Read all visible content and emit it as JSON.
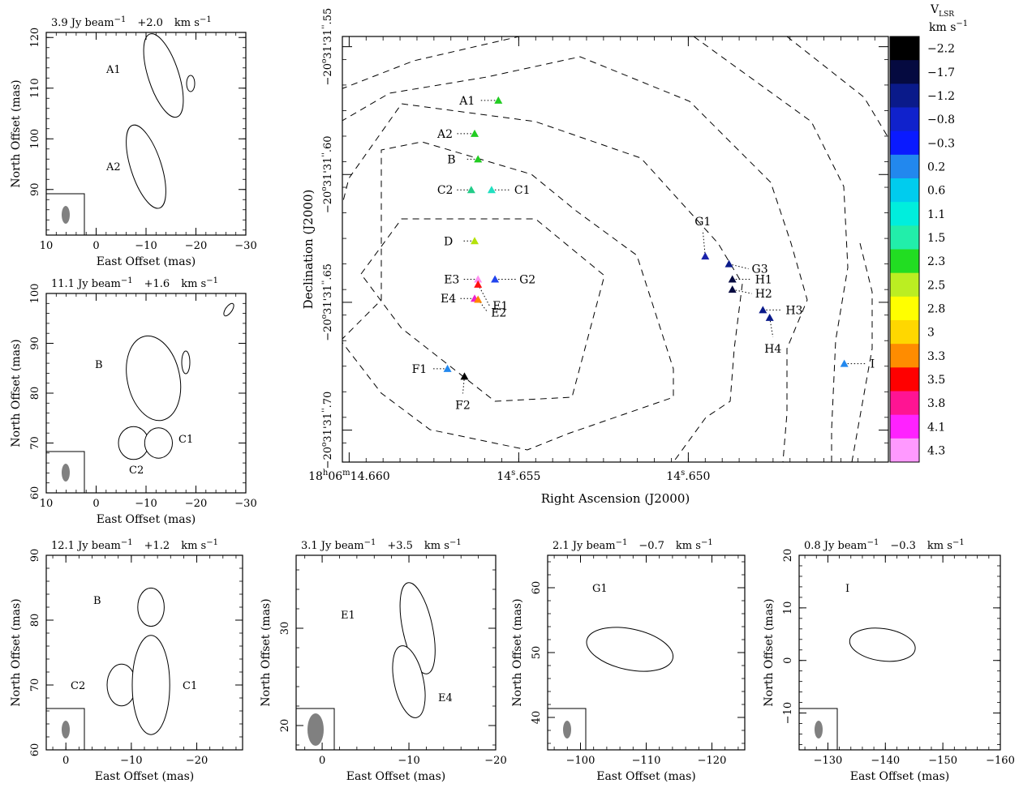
{
  "panels": [
    {
      "id": "p1",
      "title": {
        "flux": "3.9 Jy beam",
        "exp": "−1",
        "vel": "+2.0",
        "unit": "km s",
        "uexp": "−1"
      },
      "xlabel": "East Offset (mas)",
      "ylabel": "North Offset (mas)",
      "xlim": [
        10,
        -30
      ],
      "ylim": [
        81,
        121
      ],
      "xticks": [
        "10",
        "0",
        "−10",
        "−20",
        "−30"
      ],
      "yticks": [
        "90",
        "100",
        "110",
        "120"
      ],
      "labels": [
        "A1",
        "A2"
      ],
      "components": [
        {
          "name": "A1",
          "x": -13.5,
          "y": 112.5,
          "peak": 1.0
        },
        {
          "name": "A2",
          "x": -10,
          "y": 94.5,
          "peak": 0.95
        }
      ]
    },
    {
      "id": "p2",
      "title": {
        "flux": "11.1 Jy beam",
        "exp": "−1",
        "vel": "+1.6",
        "unit": "km s",
        "uexp": "−1"
      },
      "xlabel": "East Offset (mas)",
      "ylabel": "North Offset (mas)",
      "xlim": [
        10,
        -30
      ],
      "ylim": [
        60,
        100
      ],
      "xticks": [
        "10",
        "0",
        "−10",
        "−20",
        "−30"
      ],
      "yticks": [
        "60",
        "70",
        "80",
        "90",
        "100"
      ],
      "labels": [
        "B",
        "C1",
        "C2"
      ],
      "components": [
        {
          "name": "B",
          "x": -11.5,
          "y": 83,
          "peak": 1.0
        },
        {
          "name": "C2",
          "x": -7.5,
          "y": 70,
          "peak": 0.8
        },
        {
          "name": "C1",
          "x": -12.5,
          "y": 70,
          "peak": 0.35
        }
      ]
    },
    {
      "id": "p3",
      "title": {
        "flux": "12.1 Jy beam",
        "exp": "−1",
        "vel": "+1.2",
        "unit": "km s",
        "uexp": "−1"
      },
      "xlabel": "East Offset (mas)",
      "ylabel": "North Offset (mas)",
      "xlim": [
        3,
        -27
      ],
      "ylim": [
        60,
        90
      ],
      "xticks": [
        "0",
        "−10",
        "−20"
      ],
      "yticks": [
        "60",
        "70",
        "80",
        "90"
      ],
      "labels": [
        "B",
        "C2",
        "C1"
      ],
      "components": [
        {
          "name": "B",
          "x": -13,
          "y": 82,
          "peak": 0.3
        },
        {
          "name": "C2",
          "x": -8.5,
          "y": 70,
          "peak": 0.55
        },
        {
          "name": "C1",
          "x": -13,
          "y": 70,
          "peak": 1.0
        }
      ]
    },
    {
      "id": "p4",
      "title": {
        "flux": "3.1 Jy beam",
        "exp": "−1",
        "vel": "+3.5",
        "unit": "km s",
        "uexp": "−1"
      },
      "xlabel": "East Offset (mas)",
      "ylabel": "North Offset (mas)",
      "xlim": [
        3,
        -20
      ],
      "ylim": [
        17.5,
        37.5
      ],
      "xticks": [
        "0",
        "−10",
        "−20"
      ],
      "yticks": [
        "20",
        "30"
      ],
      "labels": [
        "E1",
        "E4"
      ],
      "components": [
        {
          "name": "E1",
          "x": -11,
          "y": 30,
          "peak": 1.0
        },
        {
          "name": "E4",
          "x": -10,
          "y": 24.5,
          "peak": 0.75
        }
      ]
    },
    {
      "id": "p5",
      "title": {
        "flux": "2.1 Jy beam",
        "exp": "−1",
        "vel": "−0.7",
        "unit": "km s",
        "uexp": "−1"
      },
      "xlabel": "East Offset (mas)",
      "ylabel": "North Offset (mas)",
      "xlim": [
        -95,
        -125
      ],
      "ylim": [
        35,
        65
      ],
      "xticks": [
        "−100",
        "−110",
        "−120"
      ],
      "yticks": [
        "40",
        "50",
        "60"
      ],
      "labels": [
        "G1"
      ],
      "components": [
        {
          "name": "G1",
          "x": -107.5,
          "y": 50.5,
          "peak": 1.0
        }
      ]
    },
    {
      "id": "p6",
      "title": {
        "flux": "0.8 Jy beam",
        "exp": "−1",
        "vel": "−0.3",
        "unit": "km s",
        "uexp": "−1"
      },
      "xlabel": "East Offset (mas)",
      "ylabel": "North Offset (mas)",
      "xlim": [
        -125,
        -160
      ],
      "ylim": [
        -17,
        20
      ],
      "xticks": [
        "−130",
        "−140",
        "−150",
        "−160"
      ],
      "yticks": [
        "−10",
        "0",
        "10",
        "20"
      ],
      "labels": [
        "I"
      ],
      "components": [
        {
          "name": "I",
          "x": -139.5,
          "y": 3,
          "peak": 1.0
        }
      ]
    }
  ],
  "main": {
    "xlabel": "Right Ascension (J2000)",
    "ylabel": "Declination (J2000)",
    "xticks": [
      {
        "h": "18",
        "m": "06",
        "s": "14.660",
        "style": "full"
      },
      {
        "s": "14.655",
        "style": "short"
      },
      {
        "s": "14.650",
        "style": "short"
      }
    ],
    "yticks": [
      {
        "d": "−20",
        "m": "31",
        "s": "31.55"
      },
      {
        "d": "−20",
        "m": "31",
        "s": "31.60"
      },
      {
        "d": "−20",
        "m": "31",
        "s": "31.65"
      },
      {
        "d": "−20",
        "m": "31",
        "s": "31.70"
      }
    ],
    "maser_spots": [
      {
        "name": "A1",
        "ra": 14.6556,
        "dec": -31.571,
        "v": 2.3,
        "color": "#22cc22"
      },
      {
        "name": "A2",
        "ra": 14.6563,
        "dec": -31.584,
        "v": 2.3,
        "color": "#22cc22"
      },
      {
        "name": "B",
        "ra": 14.6562,
        "dec": -31.594,
        "v": 2.3,
        "color": "#22cc22"
      },
      {
        "name": "C2",
        "ra": 14.6564,
        "dec": -31.606,
        "v": 1.5,
        "color": "#22cc88"
      },
      {
        "name": "C1",
        "ra": 14.6558,
        "dec": -31.606,
        "v": 1.1,
        "color": "#20e0c0"
      },
      {
        "name": "D",
        "ra": 14.6563,
        "dec": -31.626,
        "v": 2.5,
        "color": "#b4e20a"
      },
      {
        "name": "E3",
        "ra": 14.6562,
        "dec": -31.641,
        "v": 4.3,
        "color": "#ff90f0"
      },
      {
        "name": "G2",
        "ra": 14.6557,
        "dec": -31.641,
        "v": -0.8,
        "color": "#2244ee"
      },
      {
        "name": "E1",
        "ra": 14.6562,
        "dec": -31.643,
        "v": 3.3,
        "color": "#ff1111"
      },
      {
        "name": "E4",
        "ra": 14.6563,
        "dec": -31.6485,
        "v": 3.8,
        "color": "#ee22cc"
      },
      {
        "name": "E2",
        "ra": 14.6562,
        "dec": -31.6489,
        "v": 3.0,
        "color": "#ff8800"
      },
      {
        "name": "F1",
        "ra": 14.6571,
        "dec": -31.676,
        "v": 0.2,
        "color": "#2288ee"
      },
      {
        "name": "F2",
        "ra": 14.6566,
        "dec": -31.679,
        "v": -2.2,
        "color": "#000000"
      },
      {
        "name": "G1",
        "ra": 14.6495,
        "dec": -31.632,
        "v": -0.7,
        "color": "#1a22aa"
      },
      {
        "name": "G3",
        "ra": 14.6488,
        "dec": -31.635,
        "v": -1.2,
        "color": "#0a1a8a"
      },
      {
        "name": "H1",
        "ra": 14.6487,
        "dec": -31.641,
        "v": -1.7,
        "color": "#050a40"
      },
      {
        "name": "H2",
        "ra": 14.6487,
        "dec": -31.645,
        "v": -1.7,
        "color": "#050a40"
      },
      {
        "name": "H3",
        "ra": 14.6478,
        "dec": -31.653,
        "v": -1.2,
        "color": "#0a1a8a"
      },
      {
        "name": "H4",
        "ra": 14.6476,
        "dec": -31.656,
        "v": -1.2,
        "color": "#0a1a8a"
      },
      {
        "name": "I",
        "ra": 14.6454,
        "dec": -31.674,
        "v": -0.3,
        "color": "#2288ee"
      }
    ]
  },
  "colorbar": {
    "title": "V",
    "title_sub": "LSR",
    "unit": "km s",
    "unit_exp": "−1",
    "entries": [
      {
        "label": "−2.2",
        "color": "#000000"
      },
      {
        "label": "−1.7",
        "color": "#050a40"
      },
      {
        "label": "−1.2",
        "color": "#0a1a8a"
      },
      {
        "label": "−0.8",
        "color": "#1022cc"
      },
      {
        "label": "−0.3",
        "color": "#0a1aff"
      },
      {
        "label": "0.2",
        "color": "#2288ee"
      },
      {
        "label": "0.6",
        "color": "#00ccee"
      },
      {
        "label": "1.1",
        "color": "#00eedd"
      },
      {
        "label": "1.5",
        "color": "#22eeaa"
      },
      {
        "label": "2.3",
        "color": "#22dd22"
      },
      {
        "label": "2.5",
        "color": "#bbee22"
      },
      {
        "label": "2.8",
        "color": "#ffff00"
      },
      {
        "label": "3",
        "color": "#ffd700"
      },
      {
        "label": "3.3",
        "color": "#ff8c00"
      },
      {
        "label": "3.5",
        "color": "#ff0000"
      },
      {
        "label": "3.8",
        "color": "#ff1493"
      },
      {
        "label": "4.1",
        "color": "#ff22ff"
      },
      {
        "label": "4.3",
        "color": "#ff99ff"
      }
    ]
  }
}
